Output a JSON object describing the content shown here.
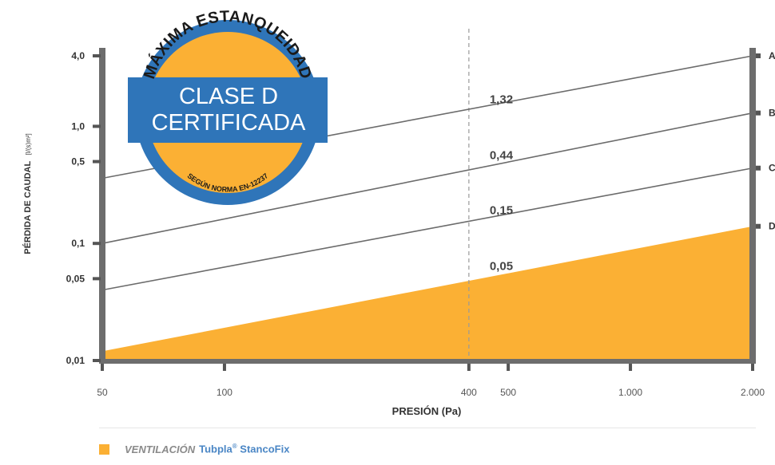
{
  "chart_data": {
    "type": "line",
    "y_axis": {
      "title": "PÉRDIDA DE CAUDAL",
      "unit": "[l/(s)m²]",
      "scale": "log",
      "range": [
        0.01,
        4.0
      ],
      "ticks": [
        {
          "value": 4.0,
          "label": "4,0"
        },
        {
          "value": 1.0,
          "label": "1,0"
        },
        {
          "value": 0.5,
          "label": "0,5"
        },
        {
          "value": 0.1,
          "label": "0,1"
        },
        {
          "value": 0.05,
          "label": "0,05"
        },
        {
          "value": 0.01,
          "label": "0,01"
        }
      ]
    },
    "x_axis": {
      "title": "PRESIÓN (Pa)",
      "scale": "log",
      "range": [
        50,
        2000
      ],
      "ticks": [
        {
          "value": 50,
          "label": "50"
        },
        {
          "value": 100,
          "label": "100"
        },
        {
          "value": 400,
          "label": "400"
        },
        {
          "value": 500,
          "label": "500"
        },
        {
          "value": 1000,
          "label": "1.000"
        },
        {
          "value": 2000,
          "label": "2.000"
        }
      ]
    },
    "reference_pressure": 400,
    "series": [
      {
        "name": "A",
        "values": [
          {
            "x": 50,
            "y": 0.36
          },
          {
            "x": 2000,
            "y": 4.0
          }
        ]
      },
      {
        "name": "B",
        "values": [
          {
            "x": 50,
            "y": 0.1
          },
          {
            "x": 2000,
            "y": 1.3
          }
        ]
      },
      {
        "name": "C",
        "values": [
          {
            "x": 50,
            "y": 0.04
          },
          {
            "x": 2000,
            "y": 0.44
          }
        ]
      },
      {
        "name": "D",
        "values": [
          {
            "x": 50,
            "y": 0.012
          },
          {
            "x": 2000,
            "y": 0.14
          }
        ]
      }
    ],
    "area_series": {
      "under": "D",
      "color": "#FBB034"
    },
    "value_labels": [
      {
        "text": "1,32",
        "y": 1.32
      },
      {
        "text": "0,44",
        "y": 0.44
      },
      {
        "text": "0,15",
        "y": 0.15
      },
      {
        "text": "0,05",
        "y": 0.05
      }
    ],
    "grid": false
  },
  "badge": {
    "top_text": "MÁXIMA ESTANQUEIDAD",
    "line1": "CLASE D",
    "line2": "CERTIFICADA",
    "bottom_text": "SEGÚN NORMA EN-12237",
    "colors": {
      "blue": "#2f75b9",
      "orange": "#FBB034"
    }
  },
  "legend": {
    "italic": "VENTILACIÓN",
    "brand": "Tubpla",
    "reg": "®",
    "product": "StancoFix"
  }
}
